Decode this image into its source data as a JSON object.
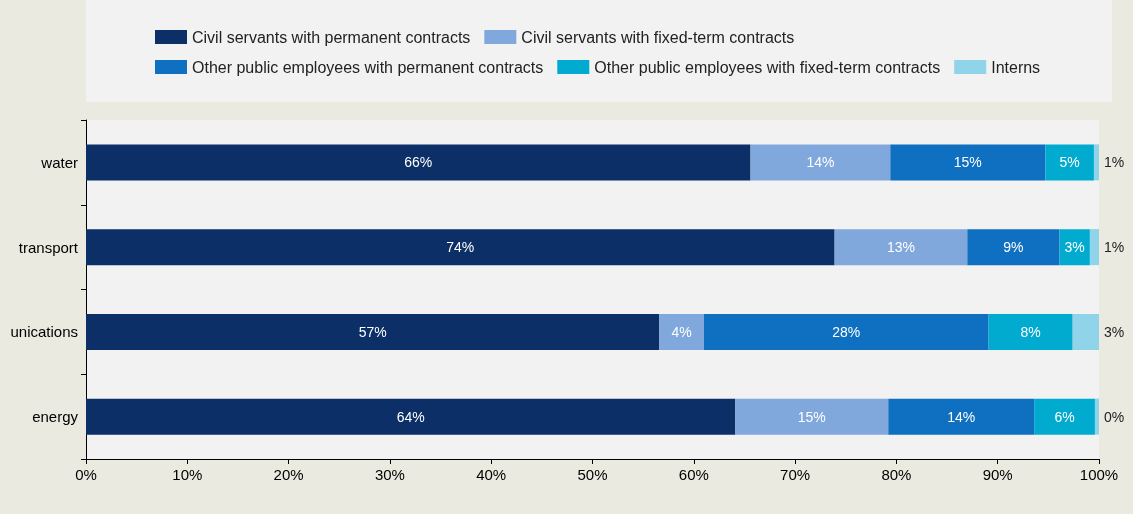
{
  "chart_data": {
    "type": "bar",
    "orientation": "horizontal",
    "stacked": true,
    "categories": [
      "water",
      "transport",
      "unications",
      "energy"
    ],
    "series": [
      {
        "name": "Civil servants with permanent contracts",
        "color": "#0b2f66",
        "values": [
          65.6,
          73.9,
          56.6,
          64.1
        ],
        "value_labels": [
          "66%",
          "74%",
          "57%",
          "64%"
        ]
      },
      {
        "name": "Civil servants with fixed-term contracts",
        "color": "#80a8dc",
        "values": [
          13.8,
          13.1,
          4.4,
          15.1
        ],
        "value_labels": [
          "14%",
          "13%",
          "4%",
          "15%"
        ]
      },
      {
        "name": "Other public employees with permanent contracts",
        "color": "#0f6fc0",
        "values": [
          15.3,
          9.1,
          28.1,
          14.4
        ],
        "value_labels": [
          "15%",
          "9%",
          "28%",
          "14%"
        ]
      },
      {
        "name": "Other public employees with fixed-term contracts",
        "color": "#00abcf",
        "values": [
          4.8,
          3.0,
          8.3,
          6.0
        ],
        "value_labels": [
          "5%",
          "3%",
          "8%",
          "6%"
        ]
      },
      {
        "name": "Interns",
        "color": "#8fd4e8",
        "values": [
          0.6,
          0.9,
          2.6,
          0.4
        ],
        "value_labels": [
          "1%",
          "1%",
          "3%",
          "0%"
        ]
      }
    ],
    "xlim": [
      0,
      100
    ],
    "xticks": [
      {
        "value": 0,
        "label": "0%"
      },
      {
        "value": 10,
        "label": "10%"
      },
      {
        "value": 20,
        "label": "20%"
      },
      {
        "value": 30,
        "label": "30%"
      },
      {
        "value": 40,
        "label": "40%"
      },
      {
        "value": 50,
        "label": "50%"
      },
      {
        "value": 60,
        "label": "60%"
      },
      {
        "value": 70,
        "label": "70%"
      },
      {
        "value": 80,
        "label": "80%"
      },
      {
        "value": 90,
        "label": "90%"
      },
      {
        "value": 100,
        "label": "100%"
      }
    ],
    "legend": "top",
    "grid": false
  }
}
